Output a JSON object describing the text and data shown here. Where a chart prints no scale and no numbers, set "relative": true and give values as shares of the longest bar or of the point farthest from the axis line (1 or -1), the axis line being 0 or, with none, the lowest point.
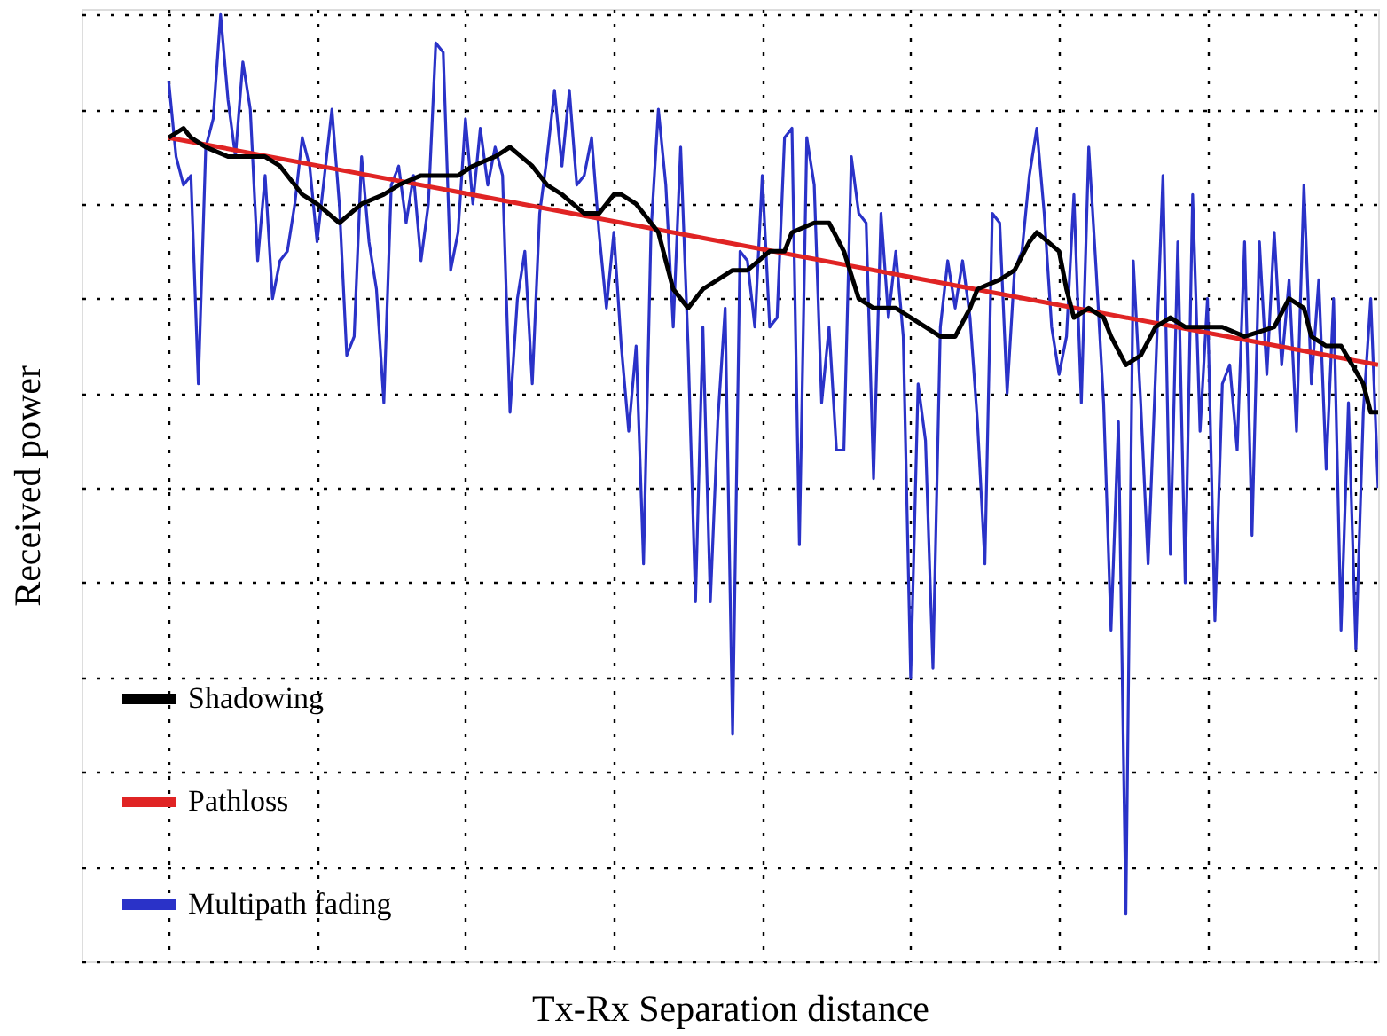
{
  "chart_data": {
    "type": "line",
    "xlabel": "Tx-Rx Separation distance",
    "ylabel": "Received power",
    "relative": true,
    "grid": true,
    "legend": "bottom left",
    "tick_labels": false,
    "line_style": "solid",
    "categories": [
      null,
      null,
      null,
      null,
      null,
      null,
      null,
      null,
      null,
      null,
      null,
      null,
      null,
      null,
      null,
      null,
      null,
      null,
      null,
      null,
      null,
      null,
      null,
      null,
      null,
      null,
      null,
      null,
      null,
      null,
      null,
      null,
      null,
      null,
      null,
      null,
      null,
      null,
      null,
      null,
      null,
      null,
      null,
      null,
      null,
      null,
      null,
      null,
      null,
      null,
      null,
      null,
      null,
      null,
      null,
      null,
      null,
      null,
      null,
      null,
      null,
      null,
      null,
      null,
      null,
      null,
      null,
      null,
      null,
      null,
      null,
      null,
      null,
      null,
      null,
      null,
      null,
      null,
      null,
      null,
      null,
      null,
      null,
      null,
      null,
      null,
      null,
      null,
      null,
      null,
      null,
      null,
      null,
      null,
      null,
      null,
      null,
      null,
      null,
      null,
      null,
      null,
      null,
      null,
      null,
      null,
      null,
      null,
      null,
      null,
      null,
      null,
      null,
      null,
      null,
      null,
      null,
      null,
      null,
      null,
      null,
      null,
      null,
      null,
      null,
      null,
      null,
      null,
      null,
      null,
      null,
      null,
      null,
      null,
      null,
      null,
      null,
      null,
      null,
      null,
      null,
      null,
      null,
      null,
      null,
      null,
      null,
      null,
      null,
      null,
      null,
      null,
      null,
      null,
      null,
      null,
      null,
      null,
      null,
      null,
      null,
      null,
      null,
      null
    ],
    "series": [
      {
        "name": "Shadowing",
        "color": "#000000",
        "values": [
          0.87,
          null,
          0.88,
          0.87,
          null,
          0.86,
          null,
          null,
          0.85,
          null,
          0.85,
          null,
          null,
          0.85,
          null,
          0.84,
          null,
          null,
          0.81,
          null,
          0.8,
          null,
          null,
          0.78,
          null,
          null,
          0.8,
          null,
          null,
          0.81,
          null,
          0.82,
          null,
          null,
          0.83,
          null,
          0.83,
          null,
          null,
          0.83,
          null,
          0.84,
          null,
          null,
          0.85,
          null,
          0.86,
          null,
          null,
          0.84,
          null,
          0.82,
          null,
          0.81,
          null,
          null,
          0.79,
          null,
          0.79,
          null,
          0.81,
          0.81,
          null,
          0.8,
          null,
          null,
          0.77,
          null,
          0.71,
          null,
          0.69,
          null,
          0.71,
          null,
          0.72,
          null,
          0.73,
          null,
          0.73,
          null,
          null,
          0.75,
          null,
          0.75,
          0.77,
          null,
          null,
          0.78,
          null,
          0.78,
          null,
          0.75,
          null,
          0.7,
          null,
          0.69,
          null,
          null,
          0.69,
          null,
          0.68,
          null,
          0.67,
          null,
          0.66,
          null,
          0.66,
          null,
          0.69,
          0.71,
          null,
          null,
          0.72,
          null,
          0.73,
          null,
          0.76,
          0.77,
          null,
          null,
          0.75,
          0.71,
          0.68,
          null,
          0.69,
          null,
          0.68,
          0.66,
          null,
          0.63,
          null,
          0.64,
          null,
          0.67,
          null,
          0.68,
          null,
          0.67,
          null,
          null,
          0.67,
          null,
          0.67,
          null,
          null,
          0.66,
          null,
          null,
          null,
          0.67,
          null,
          0.7,
          null,
          0.69,
          0.66,
          null,
          0.65,
          null,
          0.65,
          null,
          null,
          0.61,
          0.58,
          0.58
        ]
      },
      {
        "name": "Pathloss",
        "color": "#e02424",
        "values": [
          0.87,
          null,
          null,
          null,
          null,
          null,
          null,
          null,
          null,
          null,
          null,
          null,
          null,
          null,
          null,
          null,
          null,
          null,
          null,
          null,
          null,
          null,
          null,
          null,
          null,
          null,
          null,
          null,
          null,
          null,
          null,
          null,
          null,
          null,
          null,
          null,
          null,
          null,
          null,
          null,
          null,
          null,
          null,
          null,
          null,
          null,
          null,
          null,
          null,
          null,
          null,
          null,
          null,
          null,
          null,
          null,
          null,
          null,
          null,
          null,
          null,
          null,
          null,
          null,
          null,
          null,
          null,
          null,
          null,
          null,
          null,
          null,
          null,
          null,
          null,
          null,
          null,
          null,
          null,
          null,
          null,
          null,
          null,
          null,
          null,
          null,
          null,
          null,
          null,
          null,
          null,
          null,
          null,
          null,
          null,
          null,
          null,
          null,
          null,
          null,
          null,
          null,
          null,
          null,
          null,
          null,
          null,
          null,
          null,
          null,
          null,
          null,
          null,
          null,
          null,
          null,
          null,
          null,
          null,
          null,
          null,
          null,
          null,
          null,
          null,
          null,
          null,
          null,
          null,
          null,
          null,
          null,
          null,
          null,
          null,
          null,
          null,
          null,
          null,
          null,
          null,
          null,
          null,
          null,
          null,
          null,
          null,
          null,
          null,
          null,
          null,
          null,
          null,
          null,
          null,
          null,
          null,
          null,
          null,
          null,
          null,
          null,
          null,
          0.63
        ]
      },
      {
        "name": "Multipath fading",
        "color": "#2a32c8",
        "values": [
          0.93,
          0.85,
          0.82,
          0.83,
          0.61,
          0.86,
          0.89,
          1.0,
          0.91,
          0.85,
          0.95,
          0.9,
          0.74,
          0.83,
          0.7,
          0.74,
          0.75,
          0.8,
          0.87,
          0.84,
          0.76,
          0.83,
          0.9,
          0.8,
          0.64,
          0.66,
          0.85,
          0.76,
          0.71,
          0.59,
          0.82,
          0.84,
          0.78,
          0.83,
          0.74,
          0.8,
          0.97,
          0.96,
          0.73,
          0.77,
          0.89,
          0.8,
          0.88,
          0.82,
          0.86,
          0.83,
          0.58,
          0.7,
          0.75,
          0.61,
          0.79,
          0.85,
          0.92,
          0.84,
          0.92,
          0.82,
          0.83,
          0.87,
          0.77,
          0.69,
          0.77,
          0.65,
          0.56,
          0.65,
          0.42,
          0.77,
          0.9,
          0.82,
          0.67,
          0.86,
          0.65,
          0.38,
          0.67,
          0.38,
          0.57,
          0.69,
          0.24,
          0.75,
          0.74,
          0.67,
          0.83,
          0.67,
          0.68,
          0.87,
          0.88,
          0.44,
          0.87,
          0.82,
          0.59,
          0.67,
          0.54,
          0.54,
          0.85,
          0.79,
          0.78,
          0.51,
          0.79,
          0.68,
          0.75,
          0.66,
          0.3,
          0.61,
          0.55,
          0.31,
          0.67,
          0.74,
          0.69,
          0.74,
          0.68,
          0.57,
          0.42,
          0.79,
          0.78,
          0.6,
          0.73,
          0.75,
          0.83,
          0.88,
          0.79,
          0.67,
          0.62,
          0.66,
          0.81,
          0.59,
          0.86,
          0.73,
          0.59,
          0.35,
          0.57,
          0.05,
          0.74,
          0.59,
          0.42,
          0.62,
          0.83,
          0.43,
          0.76,
          0.4,
          0.81,
          0.56,
          0.7,
          0.36,
          0.61,
          0.63,
          0.54,
          0.76,
          0.45,
          0.76,
          0.62,
          0.77,
          0.63,
          0.72,
          0.56,
          0.82,
          0.61,
          0.72,
          0.52,
          0.7,
          0.35,
          0.59,
          0.33,
          0.58,
          0.7,
          0.5
        ]
      }
    ]
  }
}
